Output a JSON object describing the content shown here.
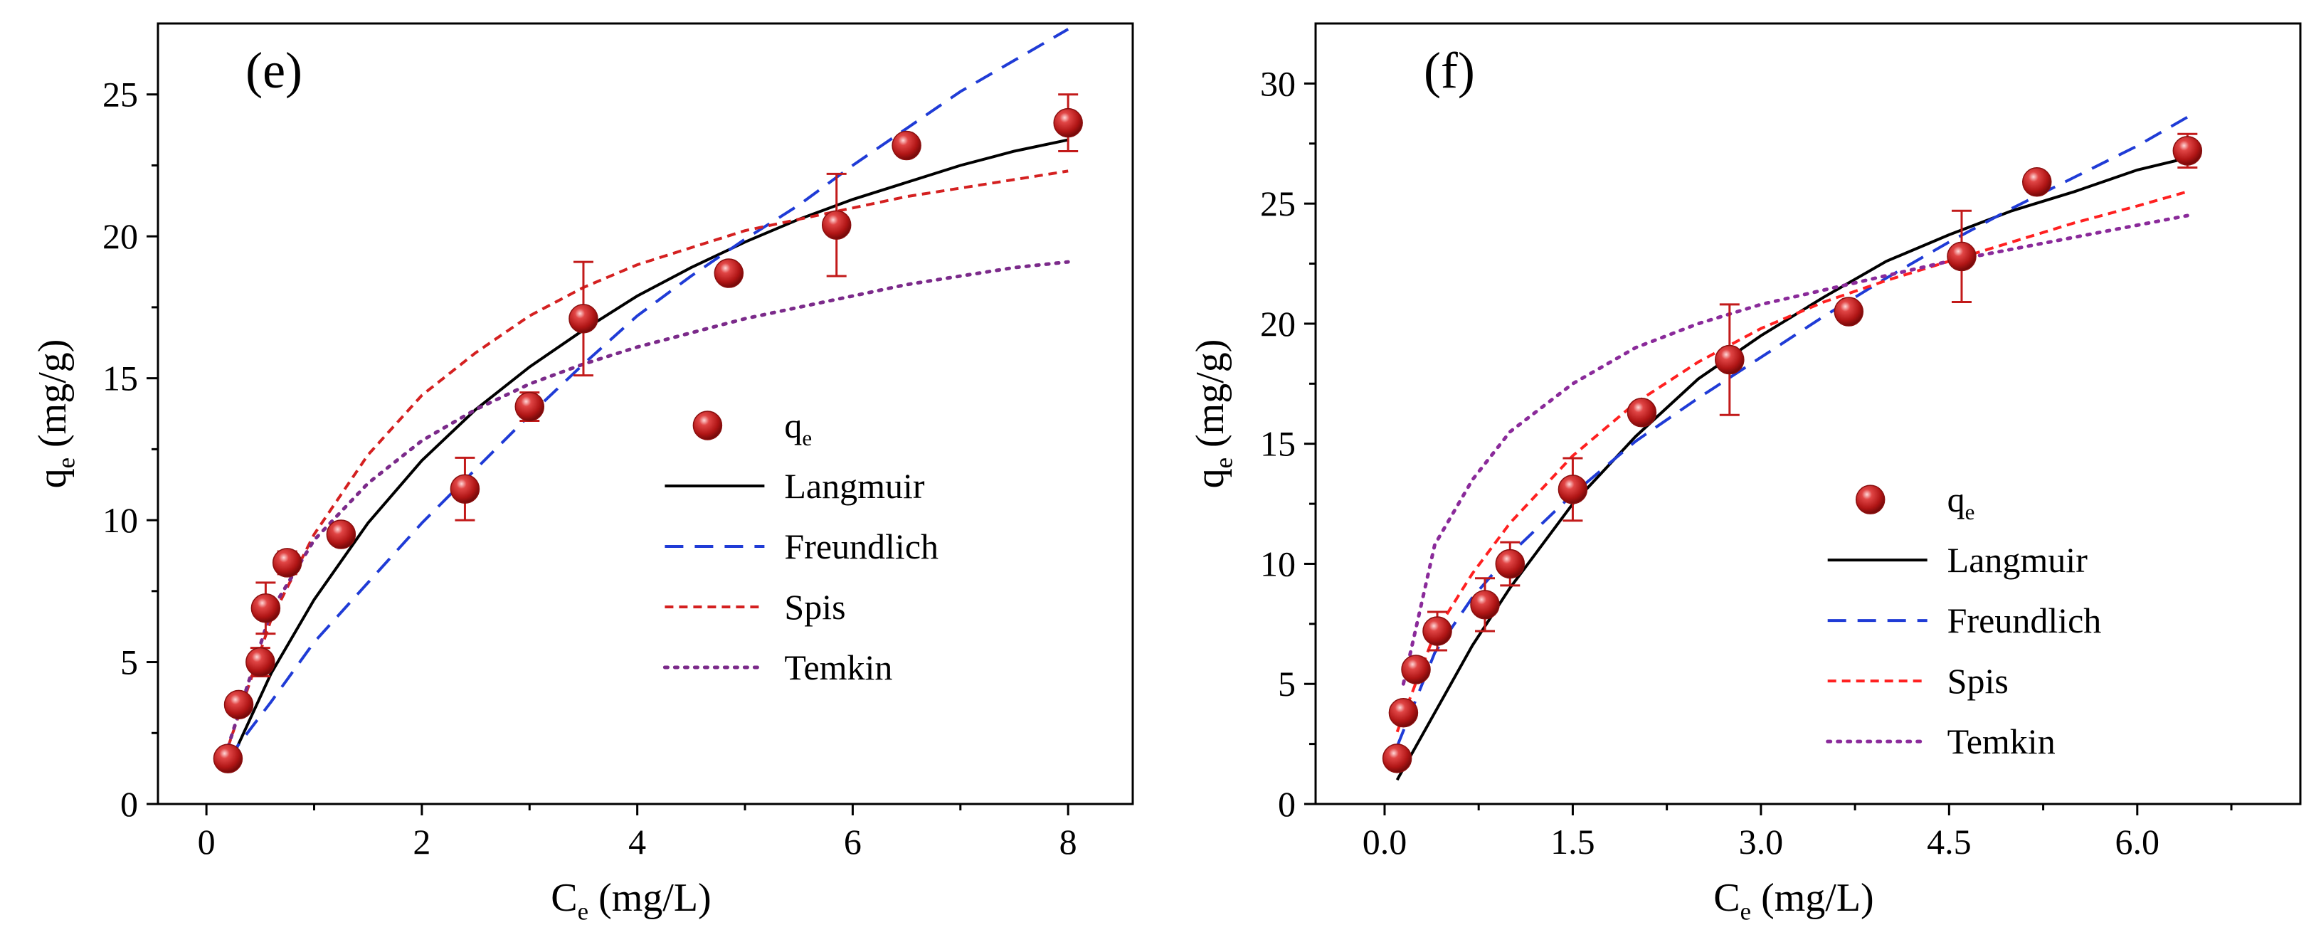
{
  "chart_data": [
    {
      "type": "scatter",
      "panel_label": "(e)",
      "xlabel": "C",
      "xlabel_sub": "e",
      "xlabel_unit": " (mg/L)",
      "ylabel": "q",
      "ylabel_sub": "e",
      "ylabel_unit": " (mg/g)",
      "xlim": [
        -0.45,
        8.6
      ],
      "ylim": [
        0,
        27.5
      ],
      "xticks": [
        0,
        2,
        4,
        6,
        8
      ],
      "xtick_labels": [
        "0",
        "2",
        "4",
        "6",
        "8"
      ],
      "yticks": [
        0,
        5,
        10,
        15,
        20,
        25
      ],
      "ytick_labels": [
        "0",
        "5",
        "10",
        "15",
        "20",
        "25"
      ],
      "legend_position": "center-right",
      "points": {
        "name": "qe",
        "label": "q",
        "label_sub": "e",
        "color": "#c21a1a",
        "x": [
          0.2,
          0.3,
          0.5,
          0.55,
          0.75,
          1.25,
          2.4,
          3.0,
          3.5,
          4.85,
          5.85,
          6.5,
          8.0
        ],
        "y": [
          1.6,
          3.5,
          5.0,
          6.9,
          8.5,
          9.5,
          11.1,
          14.0,
          17.1,
          18.7,
          20.4,
          23.2,
          24.0
        ],
        "err": [
          0,
          0,
          0.5,
          0.9,
          0.4,
          0,
          1.1,
          0.5,
          2.0,
          0,
          1.8,
          0,
          1.0
        ]
      },
      "series": [
        {
          "name": "Langmuir",
          "color": "#000000",
          "dash": "solid",
          "x": [
            0.2,
            0.6,
            1.0,
            1.5,
            2.0,
            2.5,
            3.0,
            3.5,
            4.0,
            4.5,
            5.0,
            5.5,
            6.0,
            6.5,
            7.0,
            7.5,
            8.0
          ],
          "y": [
            1.3,
            4.6,
            7.2,
            9.9,
            12.1,
            13.9,
            15.4,
            16.7,
            17.9,
            18.9,
            19.8,
            20.6,
            21.3,
            21.9,
            22.5,
            23.0,
            23.4
          ]
        },
        {
          "name": "Freundlich",
          "color": "#1f3bd6",
          "dash": "long",
          "x": [
            0.2,
            0.6,
            1.0,
            1.5,
            2.0,
            2.5,
            3.0,
            3.5,
            4.0,
            4.5,
            5.0,
            5.5,
            6.0,
            6.5,
            7.0,
            7.5,
            8.0
          ],
          "y": [
            1.6,
            3.6,
            5.7,
            7.8,
            9.9,
            11.8,
            13.7,
            15.5,
            17.2,
            18.6,
            19.9,
            21.1,
            22.5,
            23.8,
            25.1,
            26.2,
            27.3
          ]
        },
        {
          "name": "Spis",
          "color": "#d42020",
          "dash": "short",
          "x": [
            0.2,
            0.6,
            1.0,
            1.5,
            2.0,
            2.5,
            3.0,
            3.5,
            4.0,
            4.5,
            5.0,
            5.5,
            6.0,
            6.5,
            7.0,
            7.5,
            8.0
          ],
          "y": [
            2.0,
            6.5,
            9.5,
            12.3,
            14.4,
            15.9,
            17.2,
            18.2,
            19.0,
            19.6,
            20.2,
            20.6,
            21.0,
            21.4,
            21.7,
            22.0,
            22.3
          ]
        },
        {
          "name": "Temkin",
          "color": "#7b2a8a",
          "dash": "dot",
          "x": [
            0.2,
            0.6,
            1.0,
            1.5,
            2.0,
            2.5,
            3.0,
            3.5,
            4.0,
            4.5,
            5.0,
            5.5,
            6.0,
            6.5,
            7.0,
            7.5,
            8.0
          ],
          "y": [
            2.0,
            6.8,
            9.3,
            11.3,
            12.8,
            13.9,
            14.8,
            15.5,
            16.1,
            16.6,
            17.1,
            17.5,
            17.9,
            18.3,
            18.6,
            18.9,
            19.1
          ]
        }
      ]
    },
    {
      "type": "scatter",
      "panel_label": "(f)",
      "xlabel": "C",
      "xlabel_sub": "e",
      "xlabel_unit": " (mg/L)",
      "ylabel": "q",
      "ylabel_sub": "e",
      "ylabel_unit": " (mg/g)",
      "xlim": [
        -0.55,
        7.3
      ],
      "ylim": [
        0,
        32.5
      ],
      "xticks": [
        0,
        1.5,
        3,
        4.5,
        6
      ],
      "xtick_labels": [
        "0.0",
        "1.5",
        "3.0",
        "4.5",
        "6.0"
      ],
      "yticks": [
        0,
        5,
        10,
        15,
        20,
        25,
        30
      ],
      "ytick_labels": [
        "0",
        "5",
        "10",
        "15",
        "20",
        "25",
        "30"
      ],
      "legend_position": "center-right",
      "points": {
        "name": "qe",
        "label": "q",
        "label_sub": "e",
        "color": "#c21a1a",
        "x": [
          0.1,
          0.15,
          0.25,
          0.42,
          0.8,
          1.0,
          1.5,
          2.05,
          2.75,
          3.7,
          4.6,
          5.2,
          6.4
        ],
        "y": [
          1.9,
          3.8,
          5.6,
          7.2,
          8.3,
          10.0,
          13.1,
          16.3,
          18.5,
          20.5,
          22.8,
          25.9,
          27.2
        ],
        "err": [
          0,
          0,
          0,
          0.8,
          1.1,
          0.9,
          1.3,
          0,
          2.3,
          0,
          1.9,
          0,
          0.7
        ]
      },
      "series": [
        {
          "name": "Langmuir",
          "color": "#000000",
          "dash": "solid",
          "x": [
            0.1,
            0.4,
            0.7,
            1.0,
            1.5,
            2.0,
            2.5,
            3.0,
            3.5,
            4.0,
            4.5,
            5.0,
            5.5,
            6.0,
            6.4
          ],
          "y": [
            1.0,
            3.8,
            6.6,
            9.0,
            12.5,
            15.3,
            17.7,
            19.5,
            21.1,
            22.6,
            23.7,
            24.7,
            25.5,
            26.4,
            26.9
          ]
        },
        {
          "name": "Freundlich",
          "color": "#1f3bd6",
          "dash": "long",
          "x": [
            0.1,
            0.4,
            0.7,
            1.0,
            1.5,
            2.0,
            2.5,
            3.0,
            3.5,
            4.0,
            4.5,
            5.0,
            5.5,
            6.0,
            6.4
          ],
          "y": [
            2.4,
            6.3,
            8.6,
            10.4,
            12.9,
            15.1,
            16.9,
            18.6,
            20.3,
            21.9,
            23.4,
            24.8,
            26.1,
            27.4,
            28.6
          ]
        },
        {
          "name": "Spis",
          "color": "#ff2020",
          "dash": "short",
          "x": [
            0.1,
            0.4,
            0.7,
            1.0,
            1.5,
            2.0,
            2.5,
            3.0,
            3.5,
            4.0,
            4.5,
            5.0,
            5.5,
            6.0,
            6.4
          ],
          "y": [
            3.0,
            7.1,
            9.6,
            11.7,
            14.5,
            16.7,
            18.4,
            19.8,
            20.9,
            21.8,
            22.6,
            23.4,
            24.2,
            24.9,
            25.5
          ]
        },
        {
          "name": "Temkin",
          "color": "#8a2a9a",
          "dash": "dot",
          "x": [
            0.15,
            0.4,
            0.7,
            1.0,
            1.5,
            2.0,
            2.5,
            3.0,
            3.5,
            4.0,
            4.5,
            5.0,
            5.5,
            6.0,
            6.4
          ],
          "y": [
            5.0,
            10.8,
            13.5,
            15.5,
            17.5,
            19.0,
            20.0,
            20.8,
            21.4,
            22.0,
            22.6,
            23.1,
            23.6,
            24.1,
            24.5
          ]
        }
      ]
    }
  ]
}
